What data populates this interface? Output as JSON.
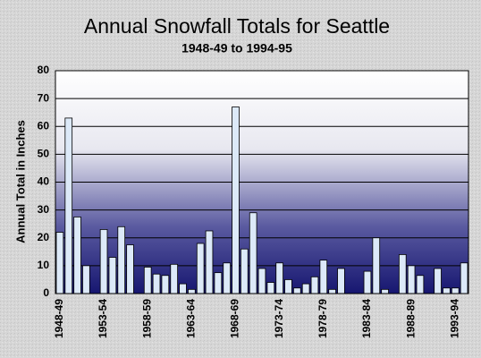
{
  "chart_data": {
    "type": "bar",
    "title": "Annual Snowfall Totals for Seattle",
    "subtitle": "1948-49 to 1994-95",
    "y_label": "Annual Total in Inches",
    "categories": [
      "1948-49",
      null,
      null,
      null,
      null,
      "1953-54",
      null,
      null,
      null,
      null,
      "1958-59",
      null,
      null,
      null,
      null,
      "1963-64",
      null,
      null,
      null,
      null,
      "1968-69",
      null,
      null,
      null,
      null,
      "1973-74",
      null,
      null,
      null,
      null,
      "1978-79",
      null,
      null,
      null,
      null,
      "1983-84",
      null,
      null,
      null,
      null,
      "1988-89",
      null,
      null,
      null,
      null,
      "1993-94",
      null
    ],
    "values": [
      22,
      63,
      27.5,
      10,
      0,
      23,
      13,
      24,
      17.5,
      0,
      9.5,
      7,
      6.5,
      10.5,
      3.5,
      1.5,
      18,
      22.5,
      7.5,
      11,
      67,
      16,
      29,
      9,
      4,
      11,
      5,
      2,
      3.5,
      6,
      12,
      1.5,
      9,
      0,
      0,
      8,
      20,
      1.5,
      0,
      14,
      10,
      6.5,
      0,
      9,
      2,
      2,
      11
    ],
    "color": "#dce9f8",
    "ylim": [
      0,
      80
    ],
    "yticks": [
      0,
      10,
      20,
      30,
      40,
      50,
      60,
      70,
      80
    ],
    "grid": true
  }
}
